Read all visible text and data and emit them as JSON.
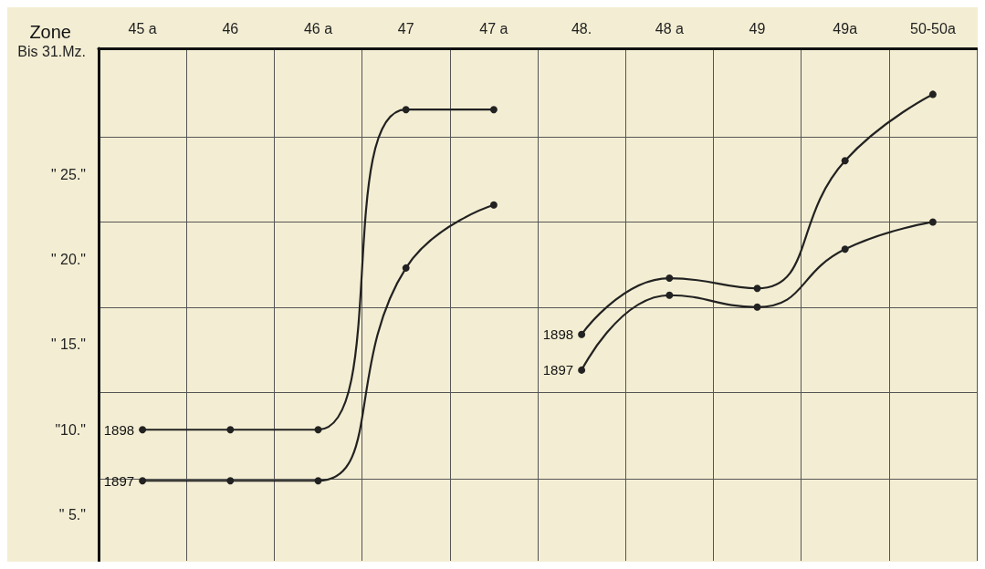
{
  "chart_data": {
    "type": "line",
    "xlabel": "Zone",
    "categories": [
      "45 a",
      "46",
      "46 a",
      "47",
      "47 a",
      "48.",
      "48 a",
      "49",
      "49a",
      "50-50a"
    ],
    "series": [
      {
        "name": "1898",
        "color": "#222222",
        "values": [
          10.0,
          10.0,
          10.0,
          28.8,
          28.8,
          null,
          null,
          null,
          null,
          null
        ]
      },
      {
        "name": "1897",
        "color": "#222222",
        "values": [
          7.0,
          7.0,
          7.0,
          19.5,
          23.2,
          null,
          null,
          null,
          null,
          null
        ]
      },
      {
        "name": "1898",
        "color": "#222222",
        "values": [
          null,
          null,
          null,
          null,
          null,
          15.6,
          18.9,
          18.3,
          25.8,
          29.7
        ]
      },
      {
        "name": "1897",
        "color": "#222222",
        "values": [
          null,
          null,
          null,
          null,
          null,
          13.5,
          17.9,
          17.2,
          20.6,
          22.2
        ]
      }
    ],
    "ylim": [
      2.3,
      32.4
    ],
    "yticks": [
      {
        "value": 5,
        "label": "\" 5.\""
      },
      {
        "value": 10,
        "label": "\"10.\""
      },
      {
        "value": 15,
        "label": "\" 15.\""
      },
      {
        "value": 20,
        "label": "\" 20.\""
      },
      {
        "value": 25,
        "label": "\" 25.\""
      },
      {
        "value": 32.2,
        "label": "Bis 31.Mz."
      },
      {
        "value": 7.1,
        "label": null
      },
      {
        "value": 12.2,
        "label": null
      },
      {
        "value": 17.2,
        "label": null
      },
      {
        "value": 22.2,
        "label": null
      },
      {
        "value": 27.2,
        "label": null
      }
    ],
    "grid": true,
    "legend": false,
    "marker": "circle",
    "line_style": "solid"
  }
}
